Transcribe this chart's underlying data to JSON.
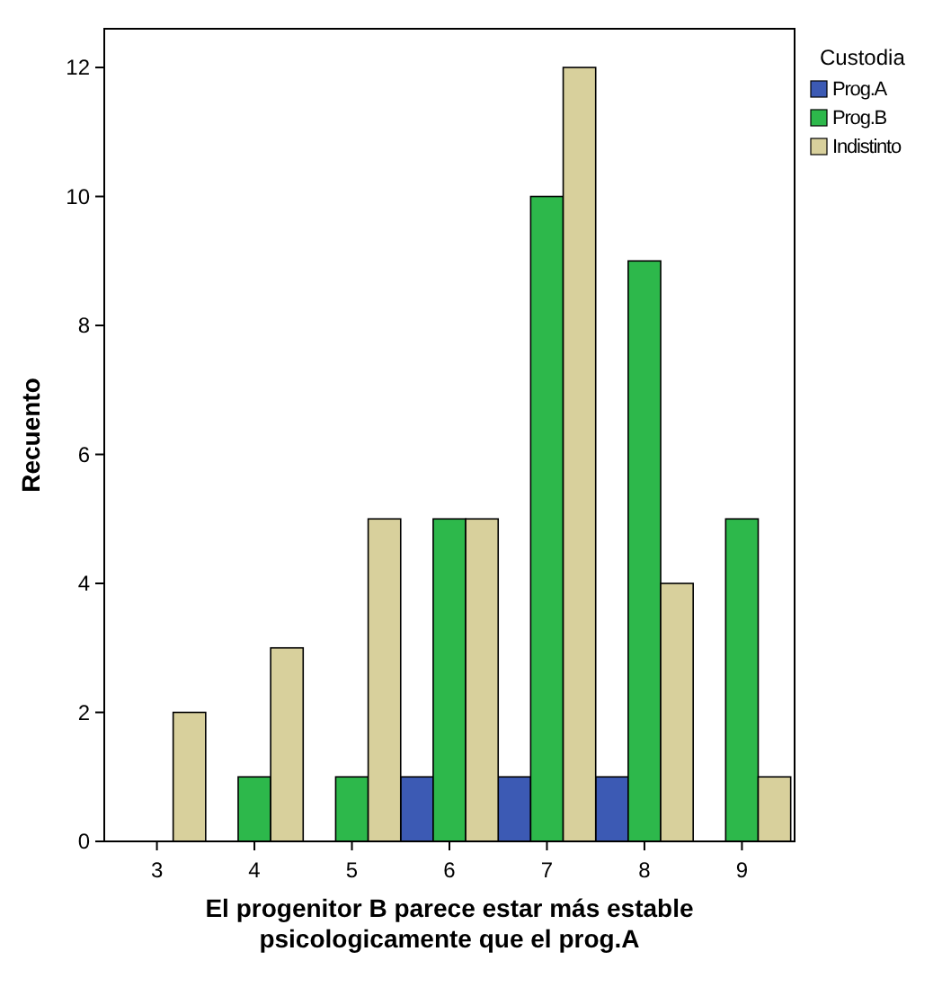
{
  "chart_data": {
    "type": "bar",
    "xlabel": "El progenitor B parece estar más estable\npsicologicamente que el prog.A",
    "ylabel": "Recuento",
    "legend_title": "Custodia",
    "legend": "right",
    "categories": [
      "3",
      "4",
      "5",
      "6",
      "7",
      "8",
      "9"
    ],
    "series": [
      {
        "name": "Prog.A",
        "color": "#3c5ab4",
        "values": [
          0,
          0,
          0,
          1,
          1,
          1,
          0
        ]
      },
      {
        "name": "Prog.B",
        "color": "#2db84b",
        "values": [
          0,
          1,
          1,
          5,
          10,
          9,
          5
        ]
      },
      {
        "name": "Indistinto",
        "color": "#d8d09c",
        "values": [
          2,
          3,
          5,
          5,
          12,
          4,
          1
        ]
      }
    ],
    "ylim": [
      0,
      12.6
    ],
    "yticks": [
      0,
      2,
      4,
      6,
      8,
      10,
      12
    ],
    "grid": false
  }
}
